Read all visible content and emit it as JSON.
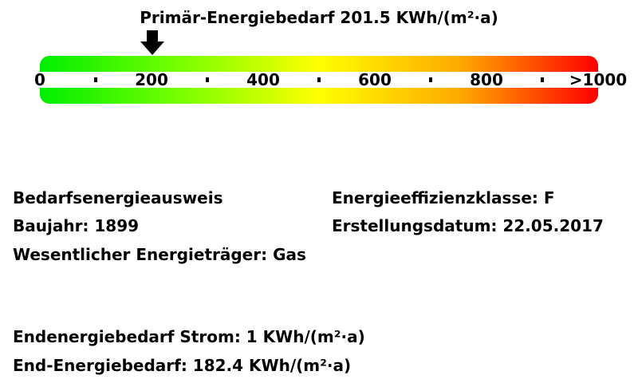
{
  "header": {
    "title": "Primär-Energiebedarf 201.5 KWh/(m²·a)"
  },
  "scale": {
    "value": 201.5,
    "min": 0,
    "max": 1000,
    "labels": [
      {
        "v": 0,
        "text": "0"
      },
      {
        "v": 200,
        "text": "200"
      },
      {
        "v": 400,
        "text": "400"
      },
      {
        "v": 600,
        "text": "600"
      },
      {
        "v": 800,
        "text": "800"
      },
      {
        "v": 1000,
        "text": ">1000"
      }
    ],
    "colors": [
      "#00ee00",
      "#ffff00",
      "#ff0000"
    ],
    "marker_icon": "arrow-down-icon"
  },
  "info": {
    "type": "Bedarfsenergieausweis",
    "year": "Baujahr: 1899",
    "carrier": "Wesentlicher Energieträger: Gas",
    "class": "Energieeffizienzklasse: F",
    "date": "Erstellungsdatum: 22.05.2017",
    "electricity": "Endenergiebedarf Strom: 1 KWh/(m²·a)",
    "end_energy": "End-Energiebedarf: 182.4 KWh/(m²·a)"
  }
}
